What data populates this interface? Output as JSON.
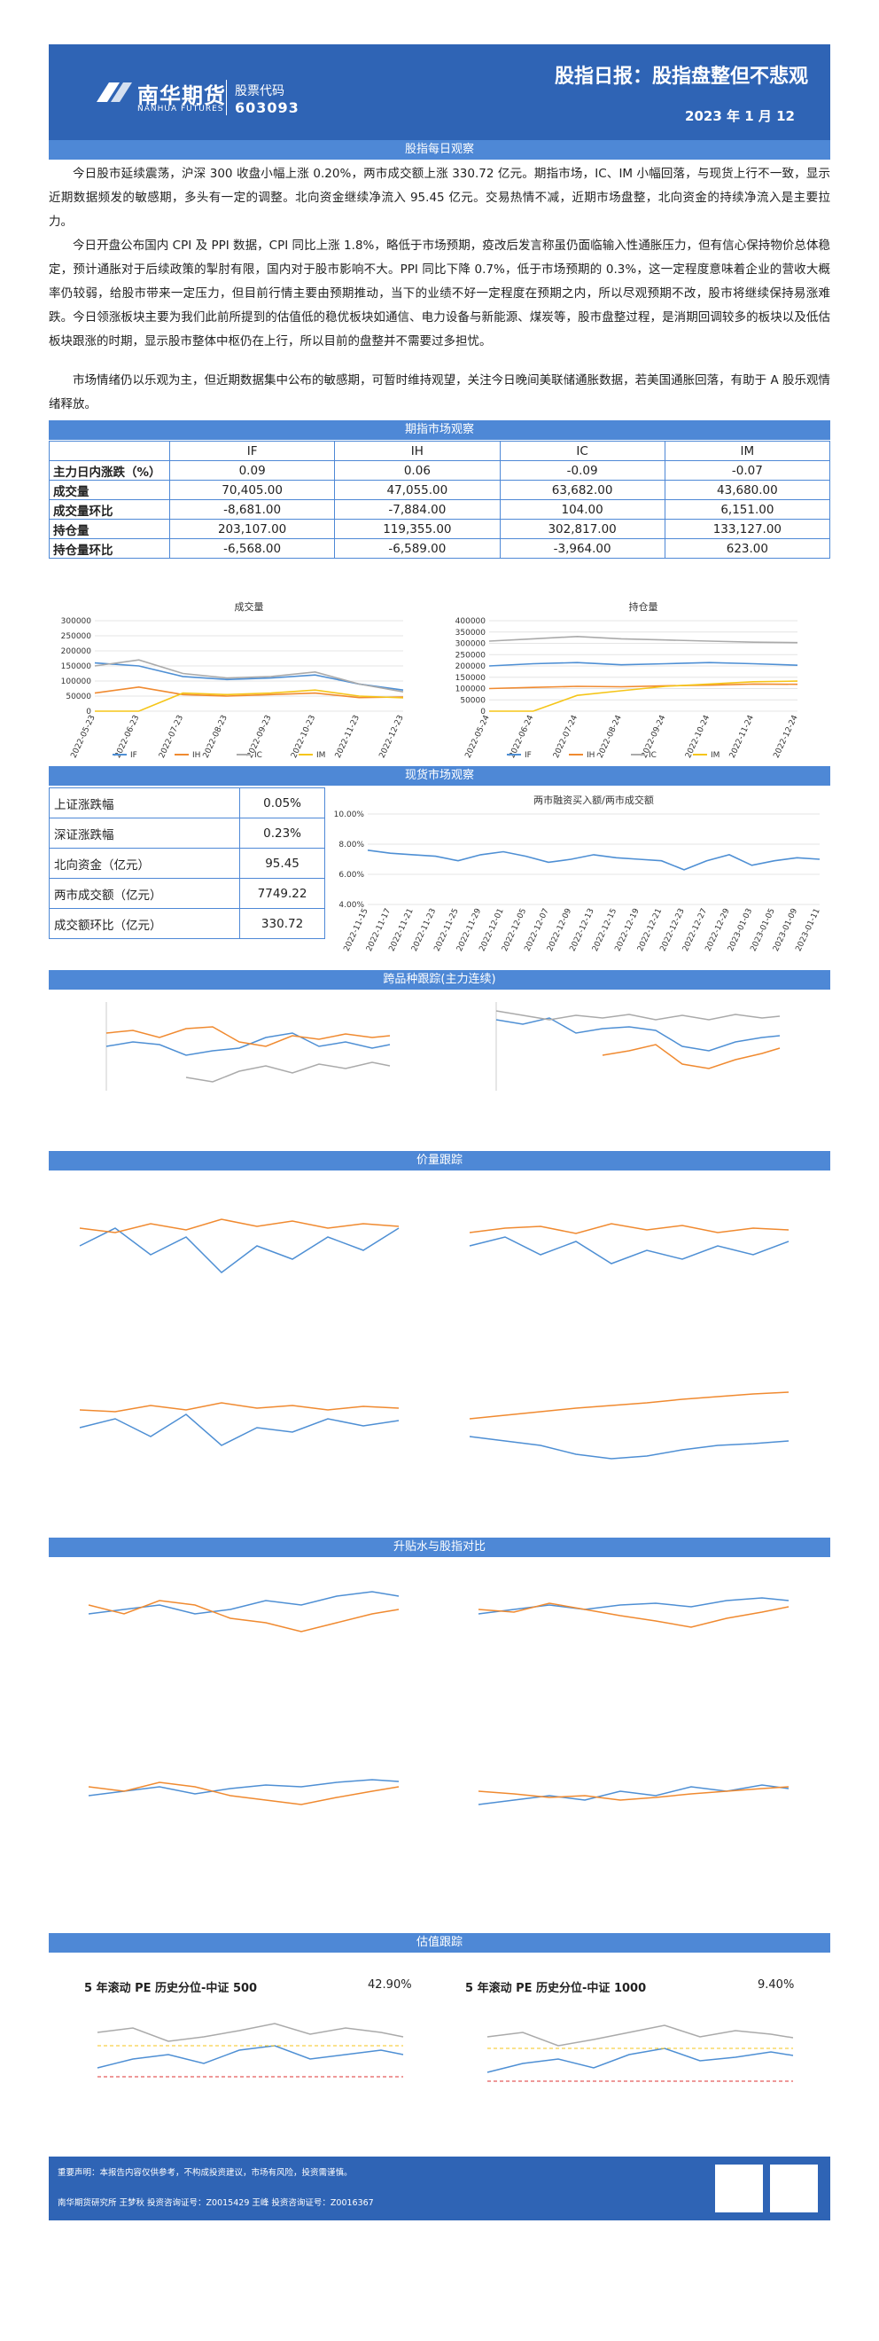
{
  "header": {
    "company": "南华期货",
    "company_en": "NANHUA FUTURES",
    "code_label": "股票代码",
    "code": "603093",
    "title": "股指日报：股指盘整但不悲观",
    "date": "2023 年 1 月 12"
  },
  "sections": {
    "daily": "股指每日观察",
    "futures": "期指市场观察",
    "spot": "现货市场观察",
    "cross": "跨品种跟踪(主力连续)",
    "volprice": "价量跟踪",
    "basis": "升贴水与股指对比",
    "valuation": "估值跟踪"
  },
  "paragraphs": [
    "今日股市延续震荡，沪深 300 收盘小幅上涨 0.20%，两市成交额上涨 330.72 亿元。期指市场，IC、IM 小幅回落，与现货上行不一致，显示近期数据频发的敏感期，多头有一定的调整。北向资金继续净流入 95.45 亿元。交易热情不减，近期市场盘整，北向资金的持续净流入是主要拉力。",
    "今日开盘公布国内 CPI 及 PPI 数据，CPI 同比上涨 1.8%，略低于市场预期，疫改后发言称虽仍面临输入性通胀压力，但有信心保持物价总体稳定，预计通胀对于后续政策的掣肘有限，国内对于股市影响不大。PPI 同比下降 0.7%，低于市场预期的 0.3%，这一定程度意味着企业的营收大概率仍较弱，给股市带来一定压力，但目前行情主要由预期推动，当下的业绩不好一定程度在预期之内，所以尽观预期不改，股市将继续保持易涨难跌。今日领涨板块主要为我们此前所提到的估值低的稳优板块如通信、电力设备与新能源、煤炭等，股市盘整过程，是消期回调较多的板块以及低估板块跟涨的时期，显示股市整体中枢仍在上行，所以目前的盘整并不需要过多担忧。",
    "市场情绪仍以乐观为主，但近期数据集中公布的敏感期，可暂时维持观望，关注今日晚间美联储通胀数据，若美国通胀回落，有助于 A 股乐观情绪释放。"
  ],
  "futures_table": {
    "columns": [
      "",
      "IF",
      "IH",
      "IC",
      "IM"
    ],
    "rows": [
      {
        "label": "主力日内涨跌（%）",
        "values": [
          "0.09",
          "0.06",
          "-0.09",
          "-0.07"
        ]
      },
      {
        "label": "成交量",
        "values": [
          "70,405.00",
          "47,055.00",
          "63,682.00",
          "43,680.00"
        ]
      },
      {
        "label": "成交量环比",
        "values": [
          "-8,681.00",
          "-7,884.00",
          "104.00",
          "6,151.00"
        ]
      },
      {
        "label": "持仓量",
        "values": [
          "203,107.00",
          "119,355.00",
          "302,817.00",
          "133,127.00"
        ]
      },
      {
        "label": "持仓量环比",
        "values": [
          "-6,568.00",
          "-6,589.00",
          "-3,964.00",
          "623.00"
        ]
      }
    ]
  },
  "spot_table": [
    {
      "label": "上证涨跌幅",
      "value": "0.05%"
    },
    {
      "label": "深证涨跌幅",
      "value": "0.23%"
    },
    {
      "label": "北向资金（亿元）",
      "value": "95.45"
    },
    {
      "label": "两市成交额（亿元）",
      "value": "7749.22"
    },
    {
      "label": "成交额环比（亿元）",
      "value": "330.72"
    }
  ],
  "valuation": {
    "left_label": "5 年滚动 PE 历史分位-中证 500",
    "left_value": "42.90%",
    "right_label": "5 年滚动 PE 历史分位-中证 1000",
    "right_value": "9.40%"
  },
  "footer": {
    "line1": "重要声明：本报告内容仅供参考，不构成投资建议，市场有风险，投资需谨慎。",
    "line2": "南华期货研究所 王梦秋 投资咨询证号：Z0015429 王峰 投资咨询证号：Z0016367"
  },
  "colors": {
    "IF": "#4e8fd4",
    "IH": "#f08a30",
    "IC": "#aaaaaa",
    "IM": "#f5c518"
  },
  "chart_data": [
    {
      "id": "volume",
      "type": "line",
      "title": "成交量",
      "x": [
        "2022-05-23",
        "2022-06-23",
        "2022-07-23",
        "2022-08-23",
        "2022-09-23",
        "2022-10-23",
        "2022-11-23",
        "2022-12-23"
      ],
      "ylim": [
        0,
        300000
      ],
      "yticks": [
        "0",
        "50000",
        "100000",
        "150000",
        "200000",
        "250000",
        "300000"
      ],
      "series": [
        {
          "name": "IF",
          "values": [
            160000,
            150000,
            115000,
            105000,
            110000,
            120000,
            90000,
            70000
          ]
        },
        {
          "name": "IH",
          "values": [
            60000,
            80000,
            55000,
            50000,
            55000,
            60000,
            45000,
            47000
          ]
        },
        {
          "name": "IC",
          "values": [
            150000,
            170000,
            125000,
            110000,
            115000,
            130000,
            90000,
            64000
          ]
        },
        {
          "name": "IM",
          "values": [
            0,
            0,
            60000,
            55000,
            60000,
            70000,
            50000,
            44000
          ]
        }
      ]
    },
    {
      "id": "oi",
      "type": "line",
      "title": "持仓量",
      "x": [
        "2022-05-24",
        "2022-06-24",
        "2022-07-24",
        "2022-08-24",
        "2022-09-24",
        "2022-10-24",
        "2022-11-24",
        "2022-12-24"
      ],
      "ylim": [
        0,
        400000
      ],
      "yticks": [
        "0",
        "50000",
        "100000",
        "150000",
        "200000",
        "250000",
        "300000",
        "350000",
        "400000"
      ],
      "series": [
        {
          "name": "IF",
          "values": [
            200000,
            210000,
            215000,
            205000,
            210000,
            215000,
            210000,
            203000
          ]
        },
        {
          "name": "IH",
          "values": [
            100000,
            105000,
            110000,
            108000,
            112000,
            115000,
            120000,
            119000
          ]
        },
        {
          "name": "IC",
          "values": [
            310000,
            320000,
            330000,
            320000,
            315000,
            310000,
            305000,
            303000
          ]
        },
        {
          "name": "IM",
          "values": [
            0,
            0,
            70000,
            90000,
            110000,
            120000,
            130000,
            133000
          ]
        }
      ]
    },
    {
      "id": "margin",
      "type": "line",
      "title": "两市融资买入额/两市成交额",
      "ylim": [
        4,
        10
      ],
      "yticks": [
        "4.00%",
        "6.00%",
        "8.00%",
        "10.00%"
      ],
      "x": [
        "2022-11-15",
        "2022-11-17",
        "2022-11-21",
        "2022-11-23",
        "2022-11-25",
        "2022-11-29",
        "2022-12-01",
        "2022-12-05",
        "2022-12-07",
        "2022-12-09",
        "2022-12-13",
        "2022-12-15",
        "2022-12-19",
        "2022-12-21",
        "2022-12-23",
        "2022-12-27",
        "2022-12-29",
        "2023-01-03",
        "2023-01-05",
        "2023-01-09",
        "2023-01-11"
      ],
      "series": [
        {
          "name": "融资买入额/成交额",
          "values": [
            7.6,
            7.4,
            7.3,
            7.2,
            6.9,
            7.3,
            7.5,
            7.2,
            6.8,
            7.0,
            7.3,
            7.1,
            7.0,
            6.9,
            6.3,
            6.9,
            7.3,
            6.6,
            6.9,
            7.1,
            7.0
          ]
        }
      ]
    }
  ]
}
